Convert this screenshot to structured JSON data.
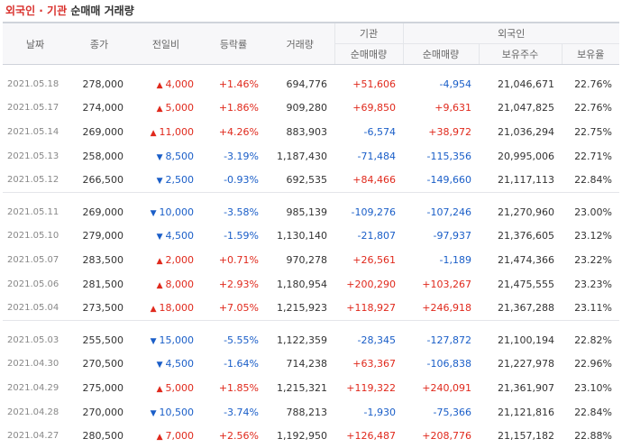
{
  "title": {
    "part1": "외국인 · 기관",
    "part2": "순매매 거래량"
  },
  "headers": {
    "date": "날짜",
    "close": "종가",
    "change": "전일비",
    "rate": "등락률",
    "volume": "거래량",
    "inst": "기관",
    "foreign": "외국인",
    "inst_net": "순매매량",
    "foreign_net": "순매매량",
    "holdings": "보유주수",
    "ratio": "보유율"
  },
  "groups": [
    [
      {
        "date": "2021.05.18",
        "close": "278,000",
        "dir": "up",
        "change": "4,000",
        "rate": "+1.46%",
        "volume": "694,776",
        "inst": "+51,606",
        "foreign": "-4,954",
        "holdings": "21,046,671",
        "ratio": "22.76%"
      },
      {
        "date": "2021.05.17",
        "close": "274,000",
        "dir": "up",
        "change": "5,000",
        "rate": "+1.86%",
        "volume": "909,280",
        "inst": "+69,850",
        "foreign": "+9,631",
        "holdings": "21,047,825",
        "ratio": "22.76%"
      },
      {
        "date": "2021.05.14",
        "close": "269,000",
        "dir": "up",
        "change": "11,000",
        "rate": "+4.26%",
        "volume": "883,903",
        "inst": "-6,574",
        "foreign": "+38,972",
        "holdings": "21,036,294",
        "ratio": "22.75%"
      },
      {
        "date": "2021.05.13",
        "close": "258,000",
        "dir": "down",
        "change": "8,500",
        "rate": "-3.19%",
        "volume": "1,187,430",
        "inst": "-71,484",
        "foreign": "-115,356",
        "holdings": "20,995,006",
        "ratio": "22.71%"
      },
      {
        "date": "2021.05.12",
        "close": "266,500",
        "dir": "down",
        "change": "2,500",
        "rate": "-0.93%",
        "volume": "692,535",
        "inst": "+84,466",
        "foreign": "-149,660",
        "holdings": "21,117,113",
        "ratio": "22.84%"
      }
    ],
    [
      {
        "date": "2021.05.11",
        "close": "269,000",
        "dir": "down",
        "change": "10,000",
        "rate": "-3.58%",
        "volume": "985,139",
        "inst": "-109,276",
        "foreign": "-107,246",
        "holdings": "21,270,960",
        "ratio": "23.00%"
      },
      {
        "date": "2021.05.10",
        "close": "279,000",
        "dir": "down",
        "change": "4,500",
        "rate": "-1.59%",
        "volume": "1,130,140",
        "inst": "-21,807",
        "foreign": "-97,937",
        "holdings": "21,376,605",
        "ratio": "23.12%"
      },
      {
        "date": "2021.05.07",
        "close": "283,500",
        "dir": "up",
        "change": "2,000",
        "rate": "+0.71%",
        "volume": "970,278",
        "inst": "+26,561",
        "foreign": "-1,189",
        "holdings": "21,474,366",
        "ratio": "23.22%"
      },
      {
        "date": "2021.05.06",
        "close": "281,500",
        "dir": "up",
        "change": "8,000",
        "rate": "+2.93%",
        "volume": "1,180,954",
        "inst": "+200,290",
        "foreign": "+103,267",
        "holdings": "21,475,555",
        "ratio": "23.23%"
      },
      {
        "date": "2021.05.04",
        "close": "273,500",
        "dir": "up",
        "change": "18,000",
        "rate": "+7.05%",
        "volume": "1,215,923",
        "inst": "+118,927",
        "foreign": "+246,918",
        "holdings": "21,367,288",
        "ratio": "23.11%"
      }
    ],
    [
      {
        "date": "2021.05.03",
        "close": "255,500",
        "dir": "down",
        "change": "15,000",
        "rate": "-5.55%",
        "volume": "1,122,359",
        "inst": "-28,345",
        "foreign": "-127,872",
        "holdings": "21,100,194",
        "ratio": "22.82%"
      },
      {
        "date": "2021.04.30",
        "close": "270,500",
        "dir": "down",
        "change": "4,500",
        "rate": "-1.64%",
        "volume": "714,238",
        "inst": "+63,367",
        "foreign": "-106,838",
        "holdings": "21,227,978",
        "ratio": "22.96%"
      },
      {
        "date": "2021.04.29",
        "close": "275,000",
        "dir": "up",
        "change": "5,000",
        "rate": "+1.85%",
        "volume": "1,215,321",
        "inst": "+119,322",
        "foreign": "+240,091",
        "holdings": "21,361,907",
        "ratio": "23.10%"
      },
      {
        "date": "2021.04.28",
        "close": "270,000",
        "dir": "down",
        "change": "10,500",
        "rate": "-3.74%",
        "volume": "788,213",
        "inst": "-1,930",
        "foreign": "-75,366",
        "holdings": "21,121,816",
        "ratio": "22.84%"
      },
      {
        "date": "2021.04.27",
        "close": "280,500",
        "dir": "up",
        "change": "7,000",
        "rate": "+2.56%",
        "volume": "1,192,950",
        "inst": "+126,487",
        "foreign": "+208,776",
        "holdings": "21,157,182",
        "ratio": "22.88%"
      }
    ]
  ],
  "colors": {
    "up": "#e0291c",
    "down": "#1a5ec8"
  },
  "icons": {
    "up": "triangle-up-icon",
    "down": "triangle-down-icon"
  }
}
